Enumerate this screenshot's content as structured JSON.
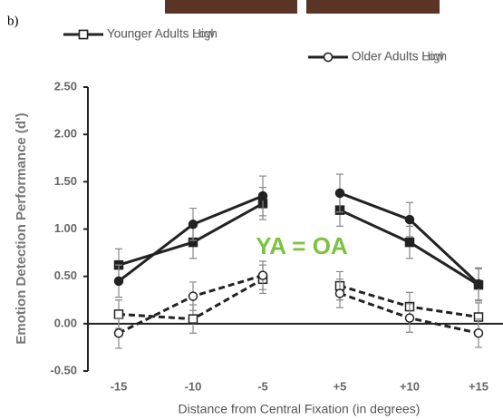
{
  "chart_data": {
    "type": "line",
    "panel_label": "b)",
    "ylabel": "Emotion Detection Performance (d')",
    "xlabel": "Distance from Central Fixation (in degrees)",
    "annotation": "YA = OA",
    "annotation_color": "#7cc242",
    "categories": [
      "-15",
      "-10",
      "-5",
      "+5",
      "+10",
      "+15"
    ],
    "ylim": [
      -0.5,
      2.5
    ],
    "yticks": [
      {
        "value": -0.5,
        "label": "-0.50"
      },
      {
        "value": 0,
        "label": "0.00"
      },
      {
        "value": 0.5,
        "label": "0.50"
      },
      {
        "value": 1,
        "label": "1.00"
      },
      {
        "value": 1.5,
        "label": "1.50"
      },
      {
        "value": 2,
        "label": "2.00"
      },
      {
        "value": 2.5,
        "label": "2.50"
      }
    ],
    "series": [
      {
        "name": "Younger Adults High",
        "color": "#222222",
        "marker": "square",
        "filled": true,
        "dashed": false,
        "values": [
          0.62,
          0.86,
          1.27,
          1.2,
          0.86,
          0.41
        ],
        "errors": [
          0.17,
          0.17,
          0.17,
          0.17,
          0.17,
          0.17
        ]
      },
      {
        "name": "Older Adults High",
        "color": "#222222",
        "marker": "circle",
        "filled": true,
        "dashed": false,
        "values": [
          0.45,
          1.05,
          1.35,
          1.38,
          1.1,
          0.42
        ],
        "errors": [
          0.17,
          0.17,
          0.21,
          0.2,
          0.18,
          0.17
        ]
      },
      {
        "name": "Younger Adults Low",
        "color": "#222222",
        "marker": "square",
        "filled": false,
        "dashed": true,
        "values": [
          0.1,
          0.05,
          0.47,
          0.4,
          0.18,
          0.07
        ],
        "errors": [
          0.15,
          0.15,
          0.15,
          0.15,
          0.15,
          0.15
        ]
      },
      {
        "name": "Older Adults Low",
        "color": "#222222",
        "marker": "circle",
        "filled": false,
        "dashed": true,
        "values": [
          -0.1,
          0.29,
          0.51,
          0.32,
          0.06,
          -0.1
        ],
        "errors": [
          0.16,
          0.15,
          0.15,
          0.15,
          0.15,
          0.15
        ]
      }
    ]
  }
}
